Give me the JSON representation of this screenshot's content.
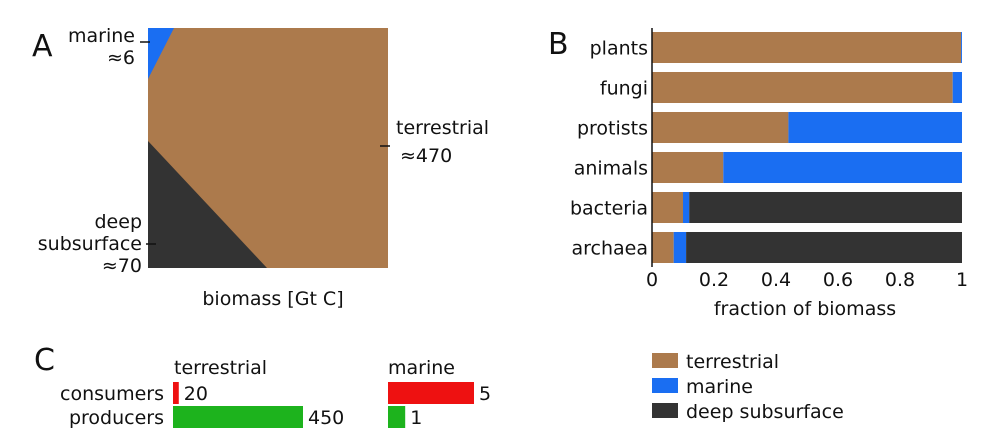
{
  "chart_data": [
    {
      "panel": "A",
      "type": "area",
      "xlabel": "biomass [Gt C]",
      "regions": [
        {
          "name": "marine",
          "label": "marine",
          "value_label": "≈6",
          "value": 6
        },
        {
          "name": "terrestrial",
          "label": "terrestrial",
          "value_label": "≈470",
          "value": 470
        },
        {
          "name": "deep subsurface",
          "label": "deep",
          "label2": "subsurface",
          "value_label": "≈70",
          "value": 70
        }
      ]
    },
    {
      "panel": "B",
      "type": "bar",
      "orientation": "horizontal",
      "stacked": true,
      "xlabel": "fraction of biomass",
      "xlim": [
        0,
        1
      ],
      "xticks": [
        "0",
        "0.2",
        "0.4",
        "0.6",
        "0.8",
        "1"
      ],
      "categories": [
        "plants",
        "fungi",
        "protists",
        "animals",
        "bacteria",
        "archaea"
      ],
      "series": [
        {
          "name": "terrestrial",
          "values": [
            0.997,
            0.97,
            0.44,
            0.23,
            0.1,
            0.07
          ]
        },
        {
          "name": "marine",
          "values": [
            0.003,
            0.03,
            0.56,
            0.77,
            0.02,
            0.04
          ]
        },
        {
          "name": "deep subsurface",
          "values": [
            0.0,
            0.0,
            0.0,
            0.0,
            0.88,
            0.89
          ]
        }
      ]
    },
    {
      "panel": "C",
      "type": "bar",
      "orientation": "horizontal",
      "groups": [
        {
          "title": "terrestrial",
          "consumers": 20,
          "producers": 450,
          "consumers_label": "20",
          "producers_label": "450"
        },
        {
          "title": "marine",
          "consumers": 5,
          "producers": 1,
          "consumers_label": "5",
          "producers_label": "1"
        }
      ],
      "row_labels": [
        "consumers",
        "producers"
      ]
    }
  ],
  "legend": {
    "entries": [
      {
        "label": "terrestrial",
        "color": "#AC7A4C"
      },
      {
        "label": "marine",
        "color": "#1A6EF2"
      },
      {
        "label": "deep subsurface",
        "color": "#333333"
      }
    ]
  },
  "panel_letters": {
    "a": "A",
    "b": "B",
    "c": "C"
  },
  "colors": {
    "terrestrial": "#AC7A4C",
    "marine": "#1A6EF2",
    "deep_subsurface": "#333333",
    "consumers": "#EE1111",
    "producers": "#1DB31D"
  }
}
